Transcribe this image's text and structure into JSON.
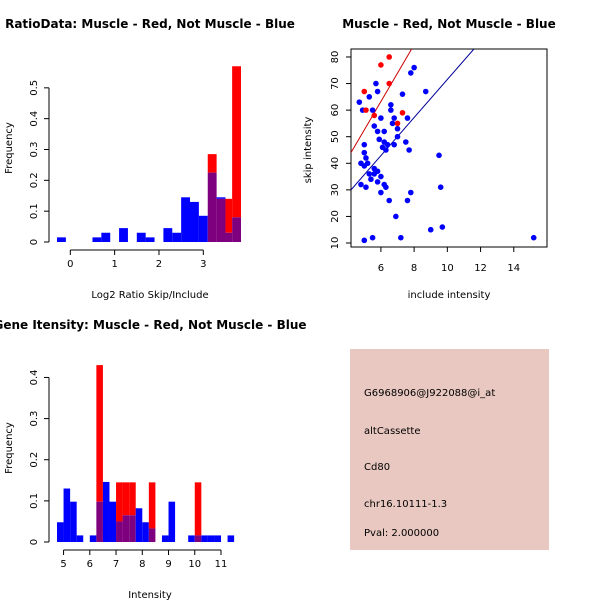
{
  "colors": {
    "red": "#ff0000",
    "blue": "#0000ff",
    "purple": "#7f007f",
    "line_red": "#cc0000",
    "line_blue": "#000099",
    "info_bg": "#e8c8c0",
    "pval": "#cc0000"
  },
  "chart_data": [
    {
      "id": "ratio_hist",
      "type": "bar",
      "title": "RatioData: Muscle - Red, Not Muscle - Blue",
      "xlabel": "Log2 Ratio Skip/Include",
      "ylabel": "Frequency",
      "xlim": [
        -0.3,
        3.85
      ],
      "ylim": [
        0,
        0.6
      ],
      "xticks": [
        0,
        1,
        2,
        3
      ],
      "yticks": [
        0.0,
        0.1,
        0.2,
        0.3,
        0.4,
        0.5
      ],
      "bin_width": 0.2,
      "bin_starts": [
        -0.3,
        -0.1,
        0.1,
        0.3,
        0.5,
        0.7,
        0.9,
        1.1,
        1.3,
        1.5,
        1.7,
        1.9,
        2.1,
        2.3,
        2.5,
        2.7,
        2.9,
        3.1,
        3.3,
        3.5,
        3.65
      ],
      "series": [
        {
          "name": "Muscle",
          "color": "red",
          "values": [
            0,
            0,
            0,
            0,
            0,
            0,
            0,
            0,
            0,
            0,
            0,
            0,
            0,
            0,
            0,
            0,
            0,
            0.285,
            0.14,
            0.14,
            0.57
          ]
        },
        {
          "name": "Not Muscle",
          "color": "blue",
          "values": [
            0.015,
            0,
            0,
            0,
            0.015,
            0.03,
            0,
            0.045,
            0,
            0.03,
            0.015,
            0,
            0.045,
            0.03,
            0.145,
            0.13,
            0.085,
            0.225,
            0.145,
            0.03,
            0.08
          ]
        }
      ]
    },
    {
      "id": "scatter",
      "type": "scatter",
      "title": "Muscle - Red, Not Muscle - Blue",
      "xlabel": "include intensity",
      "ylabel": "skip intensity",
      "xlim": [
        4.2,
        16
      ],
      "ylim": [
        8.5,
        83
      ],
      "xticks": [
        6,
        8,
        10,
        12,
        14
      ],
      "yticks": [
        10,
        20,
        30,
        40,
        50,
        60,
        70,
        80
      ],
      "lines": [
        {
          "name": "Muscle fit",
          "color": "line_red",
          "from": [
            4.2,
            44
          ],
          "to": [
            7.85,
            83
          ]
        },
        {
          "name": "Not Muscle fit",
          "color": "line_blue",
          "from": [
            4.2,
            30
          ],
          "to": [
            11.6,
            83
          ]
        }
      ],
      "series": [
        {
          "name": "Muscle",
          "color": "red",
          "points": [
            [
              5.0,
              67
            ],
            [
              5.6,
              58
            ],
            [
              6.0,
              77
            ],
            [
              6.5,
              80
            ],
            [
              6.5,
              70
            ],
            [
              7.0,
              55
            ],
            [
              7.3,
              59
            ],
            [
              5.1,
              60
            ]
          ]
        },
        {
          "name": "Not Muscle",
          "color": "blue",
          "points": [
            [
              4.7,
              63
            ],
            [
              4.9,
              60
            ],
            [
              5.3,
              65
            ],
            [
              5.5,
              60
            ],
            [
              5.7,
              70
            ],
            [
              5.8,
              67
            ],
            [
              5.6,
              54
            ],
            [
              5.8,
              52
            ],
            [
              6.0,
              57
            ],
            [
              6.2,
              48
            ],
            [
              6.3,
              45
            ],
            [
              6.6,
              62
            ],
            [
              6.7,
              55
            ],
            [
              6.8,
              57
            ],
            [
              7.0,
              53
            ],
            [
              7.3,
              66
            ],
            [
              7.6,
              57
            ],
            [
              7.8,
              74
            ],
            [
              8.0,
              76
            ],
            [
              8.7,
              67
            ],
            [
              5.0,
              47
            ],
            [
              5.0,
              44
            ],
            [
              5.1,
              42
            ],
            [
              5.2,
              40
            ],
            [
              5.0,
              39
            ],
            [
              4.8,
              40
            ],
            [
              5.3,
              36
            ],
            [
              5.4,
              34
            ],
            [
              5.6,
              38
            ],
            [
              5.8,
              37
            ],
            [
              6.0,
              35
            ],
            [
              6.2,
              32
            ],
            [
              6.5,
              26
            ],
            [
              5.8,
              33
            ],
            [
              5.6,
              36
            ],
            [
              6.0,
              29
            ],
            [
              6.3,
              31
            ],
            [
              6.9,
              20
            ],
            [
              7.2,
              12
            ],
            [
              7.6,
              26
            ],
            [
              7.8,
              29
            ],
            [
              5.0,
              11
            ],
            [
              5.5,
              12
            ],
            [
              6.8,
              47
            ],
            [
              7.0,
              50
            ],
            [
              7.5,
              48
            ],
            [
              7.7,
              45
            ],
            [
              9.0,
              15
            ],
            [
              9.5,
              43
            ],
            [
              9.6,
              31
            ],
            [
              9.7,
              16
            ],
            [
              15.2,
              12
            ],
            [
              4.8,
              32
            ],
            [
              5.1,
              31
            ],
            [
              6.1,
              46
            ],
            [
              6.4,
              47
            ],
            [
              6.6,
              60
            ],
            [
              5.9,
              49
            ],
            [
              6.2,
              52
            ]
          ]
        }
      ]
    },
    {
      "id": "intensity_hist",
      "type": "bar",
      "title": "Gene Itensity: Muscle - Red, Not Muscle - Blue",
      "xlabel": "Intensity",
      "ylabel": "Frequency",
      "xlim": [
        4.75,
        11.8
      ],
      "ylim": [
        0,
        0.44
      ],
      "xticks": [
        5,
        6,
        7,
        8,
        9,
        10,
        11
      ],
      "yticks": [
        0.0,
        0.1,
        0.2,
        0.3,
        0.4
      ],
      "bin_width": 0.25,
      "bin_starts": [
        4.75,
        5.0,
        5.25,
        5.5,
        5.75,
        6.0,
        6.25,
        6.5,
        6.75,
        7.0,
        7.25,
        7.5,
        7.75,
        8.0,
        8.25,
        8.5,
        8.75,
        9.0,
        9.25,
        9.5,
        9.75,
        10.0,
        10.25,
        10.5,
        10.75,
        11.0,
        11.25,
        11.5
      ],
      "series": [
        {
          "name": "Muscle",
          "color": "red",
          "values": [
            0,
            0,
            0,
            0,
            0,
            0,
            0.43,
            0,
            0,
            0.145,
            0.145,
            0.145,
            0,
            0,
            0.145,
            0,
            0,
            0,
            0,
            0,
            0,
            0.145,
            0,
            0,
            0,
            0,
            0,
            0
          ]
        },
        {
          "name": "Not Muscle",
          "color": "blue",
          "values": [
            0.048,
            0.13,
            0.098,
            0.016,
            0.0,
            0.016,
            0.098,
            0.146,
            0.098,
            0.05,
            0.065,
            0.065,
            0.082,
            0.048,
            0.033,
            0.0,
            0.016,
            0.098,
            0.0,
            0.0,
            0.016,
            0.016,
            0.016,
            0.016,
            0.016,
            0.0,
            0.016,
            0.0
          ]
        }
      ]
    }
  ],
  "info_panel": {
    "probe": "G6968906@J922088@i_at",
    "event_type": "altCassette",
    "gene": "Cd80",
    "location": "chr16.10111-1.3",
    "pval": "Pval: 2.000000"
  }
}
